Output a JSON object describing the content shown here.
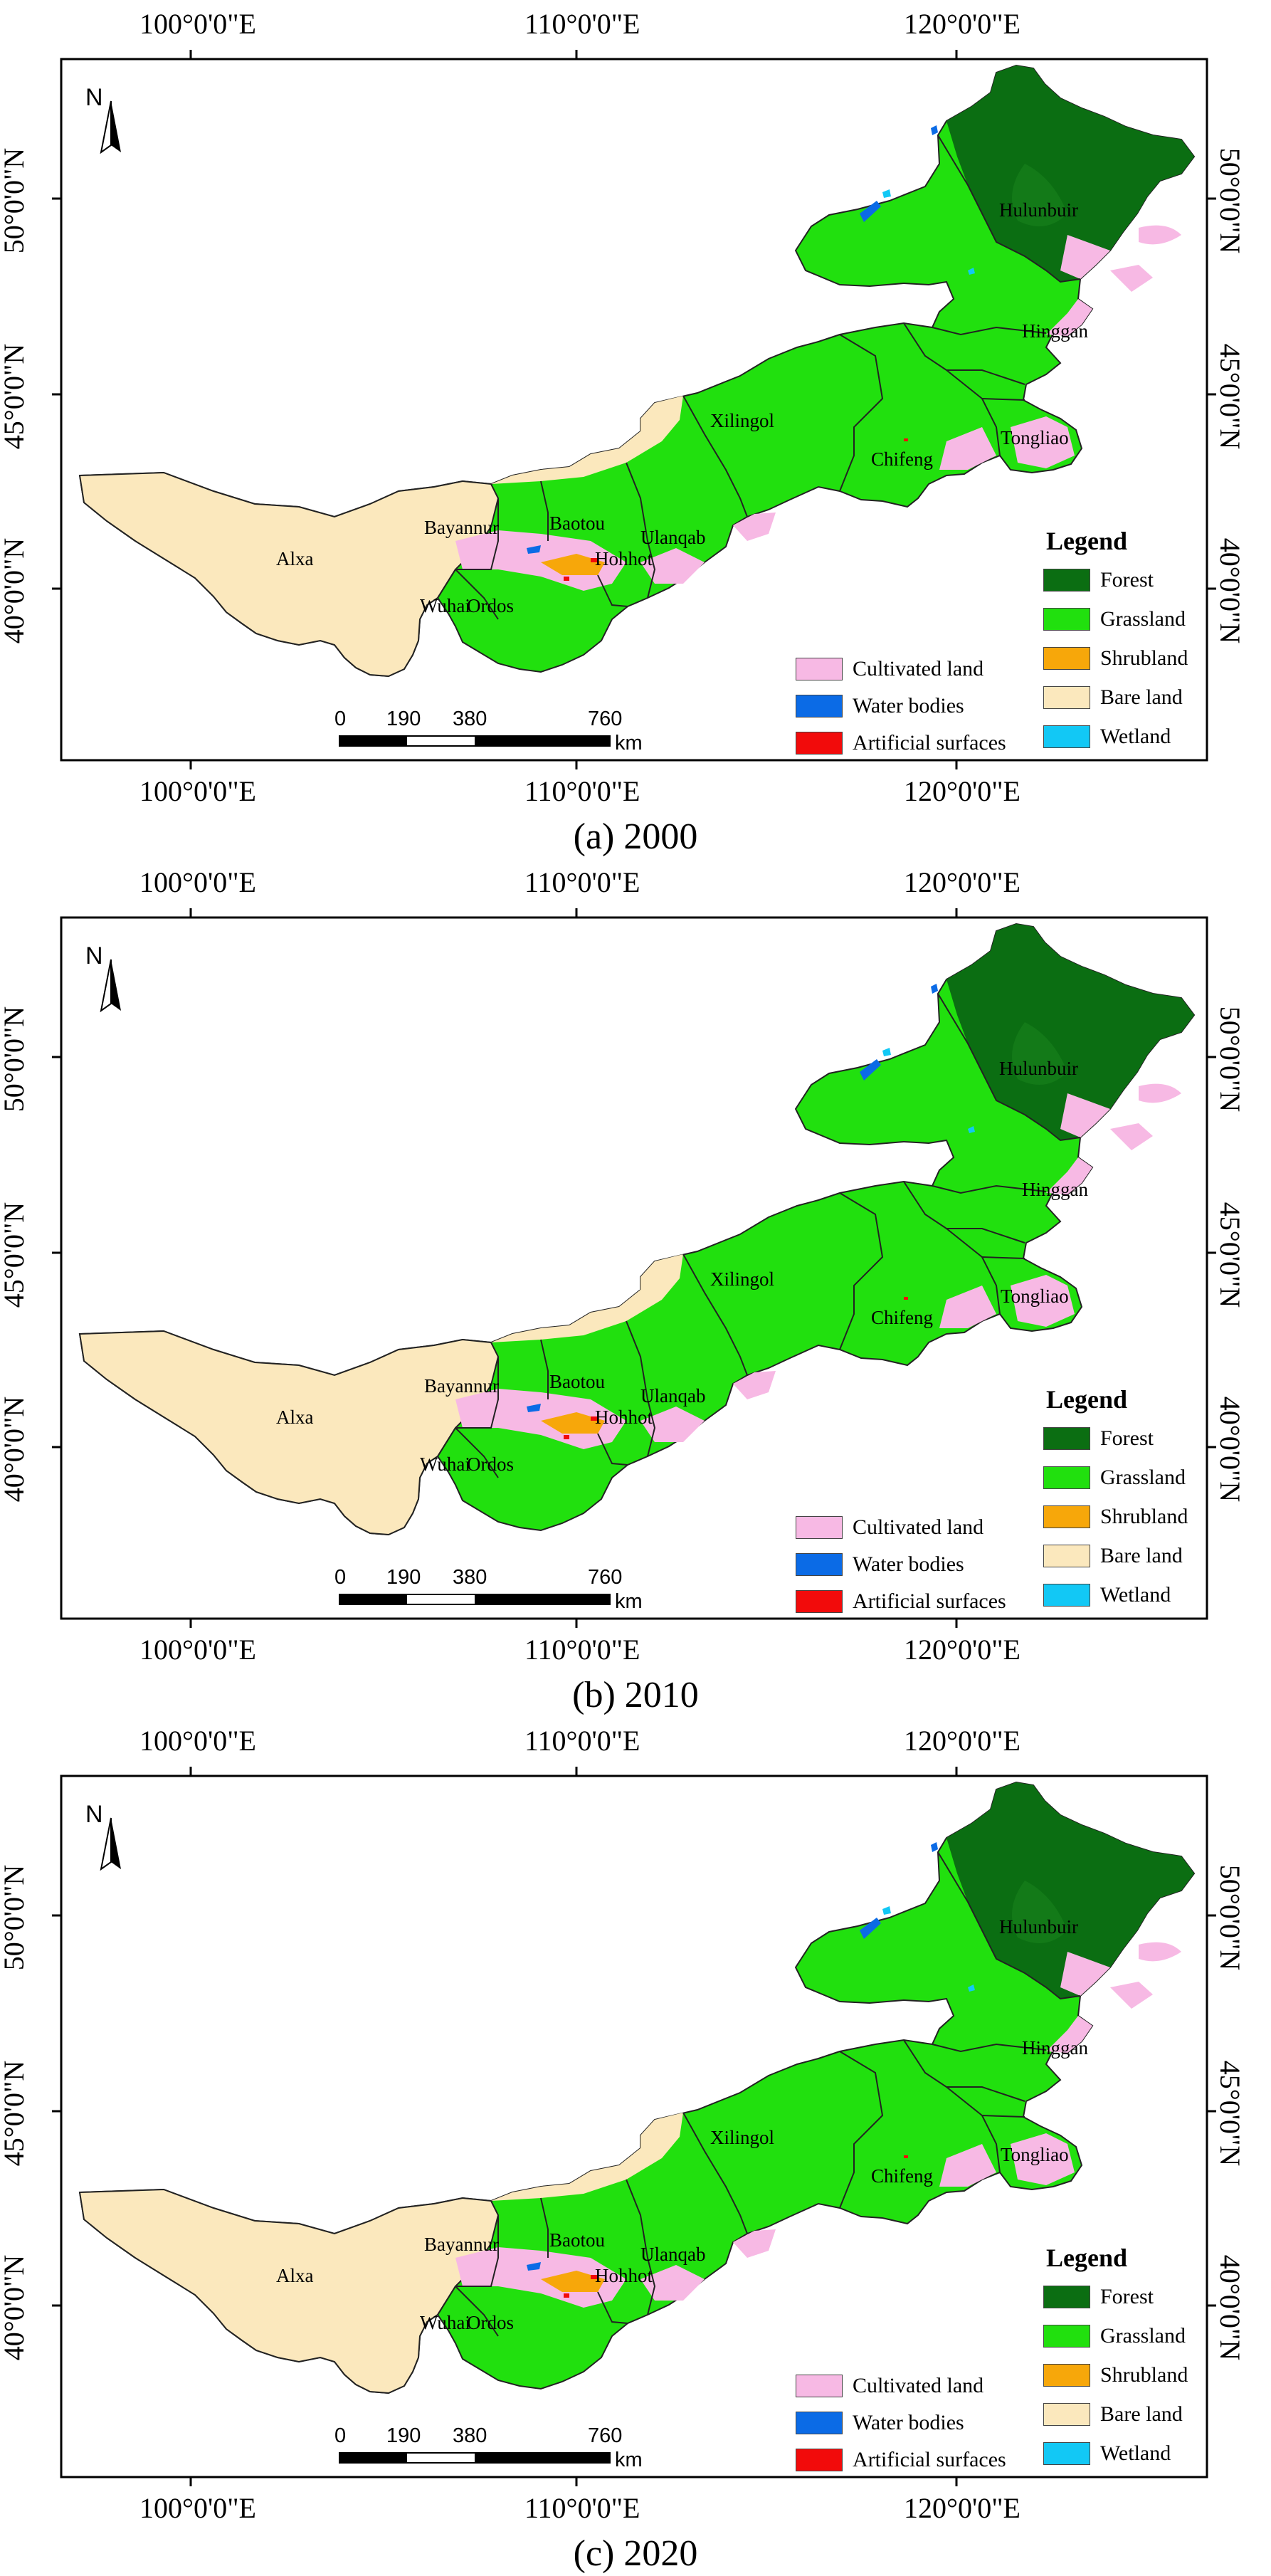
{
  "panels": [
    {
      "caption": "(a) 2000"
    },
    {
      "caption": "(b) 2010"
    },
    {
      "caption": "(c) 2020"
    }
  ],
  "axis_labels": {
    "top": [
      "100°0'0\"E",
      "110°0'0\"E",
      "120°0'0\"E"
    ],
    "bottom": [
      "100°0'0\"E",
      "110°0'0\"E",
      "120°0'0\"E"
    ],
    "left": [
      "50°0'0\"N",
      "45°0'0\"N",
      "40°0'0\"N"
    ],
    "right": [
      "50°0'0\"N",
      "45°0'0\"N",
      "40°0'0\"N"
    ]
  },
  "regions": [
    "Hulunbuir",
    "Hinggan",
    "Xilingol",
    "Tongliao",
    "Chifeng",
    "Ulanqab",
    "Baotou",
    "Bayannur",
    "Hohhot",
    "Alxa",
    "Wuhai",
    "Ordos"
  ],
  "north_arrow": "N",
  "legend": {
    "title": "Legend",
    "items_right": [
      {
        "label": "Forest",
        "color": "#0b6e12"
      },
      {
        "label": "Grassland",
        "color": "#21e00e"
      },
      {
        "label": "Shrubland",
        "color": "#f7a70a"
      },
      {
        "label": "Bare land",
        "color": "#fbe8bd"
      },
      {
        "label": "Wetland",
        "color": "#12c8f5"
      }
    ],
    "items_left": [
      {
        "label": "Cultivated land",
        "color": "#f7b9e4"
      },
      {
        "label": "Water bodies",
        "color": "#0b6be6"
      },
      {
        "label": "Artificial surfaces",
        "color": "#f20b0b"
      }
    ]
  },
  "scale_bar": {
    "ticks": [
      "0",
      "190",
      "380",
      "760"
    ],
    "unit": "km"
  }
}
